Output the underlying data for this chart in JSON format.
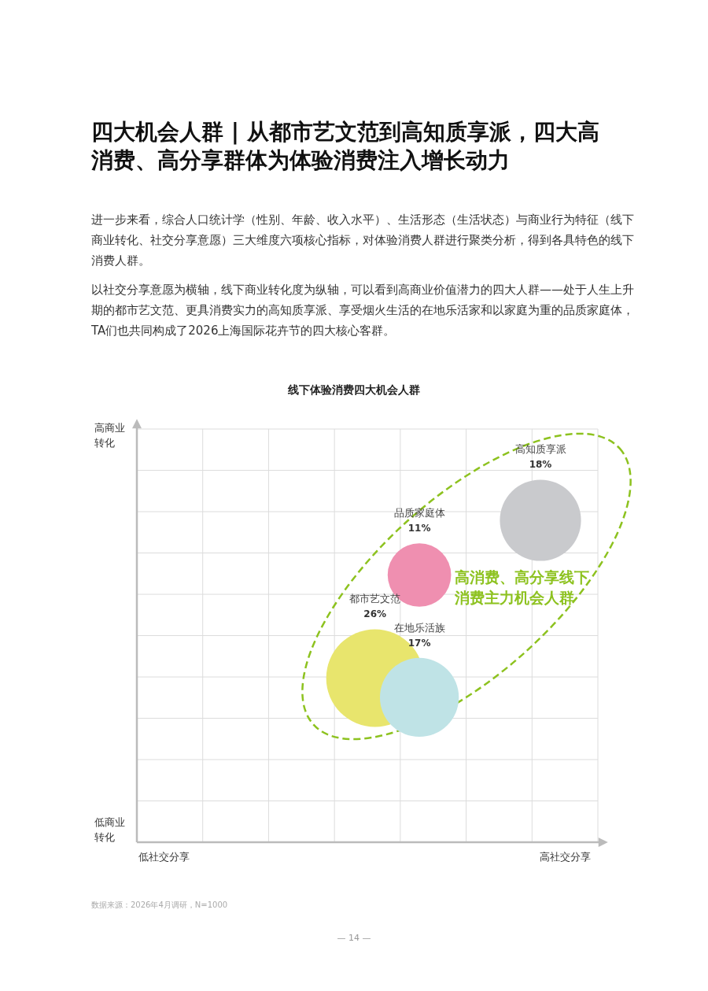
{
  "chart_data": {
    "type": "other",
    "title": "四大机会人群 | 从都市艺文范到高知质享派，四大高消费、高分享群体为体验消费注入增长动力",
    "subtitle": "线下体验消费四大机会人群",
    "annotations": [
      "进一步来看，综合人口统计学（性别、年龄、收入水平）、生活形态（生活状态）与商业行为特征（线下商业转化、社交分享意愿）三大维度六项核心指标，对体验消费人群进行聚类分析，得到各具特色的线下消费人群。",
      "以社交分享意愿为横轴，线下商业转化度为纵轴，可以看到高商业价值潜力的四大人群——处于人生上升期的都市艺文范、更具消费实力的高知质享派、享受烟火生活的在地乐活家和以家庭为重的品质家庭体，TA们也共同构成了2026上海国际花卉节的四大核心客群。",
      "高商业转化",
      "低商业转化",
      "低社交分享",
      "高社交分享",
      "高消费、高分享线下消费主力机会人群",
      "数据来源：2026年4月调研，N=1000",
      "— 14 —"
    ],
    "categories": [
      "高知质享派",
      "品质家庭体",
      "都市艺文范",
      "在地乐活族"
    ],
    "values": [
      18,
      11,
      26,
      17
    ],
    "value_labels": [
      "18%",
      "11%",
      "26%",
      "17%"
    ],
    "colors": [
      "#c9cacd",
      "#ef8fb0",
      "#e8e56d",
      "#bfe3e6"
    ]
  }
}
